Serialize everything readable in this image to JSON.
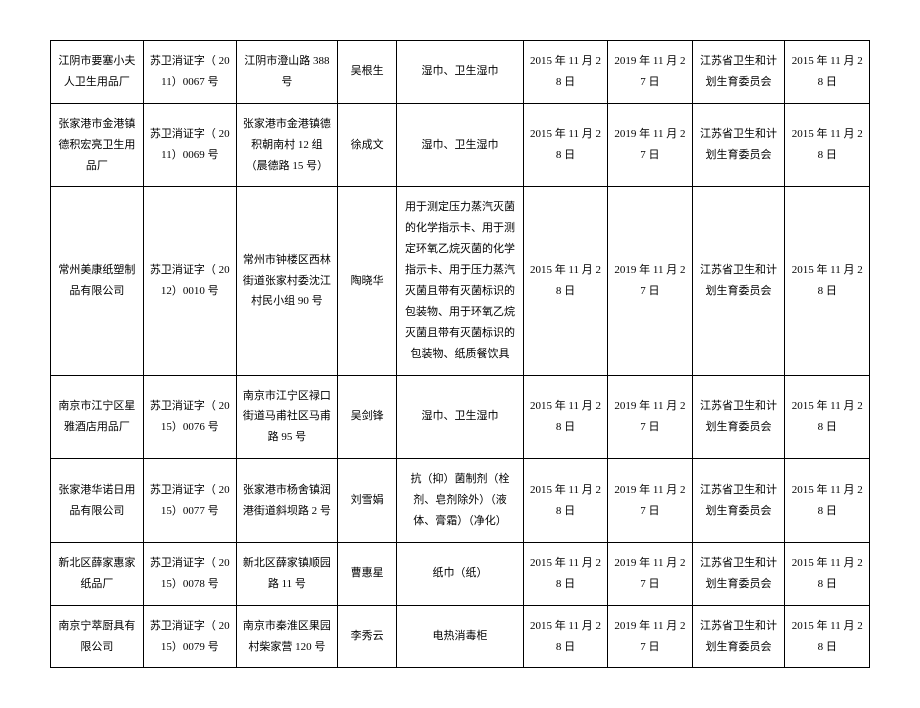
{
  "table": {
    "rows": [
      {
        "c1": "江阴市要塞小夫人卫生用品厂",
        "c2": "苏卫消证字（ 2011）0067 号",
        "c3": "江阴市澄山路 388 号",
        "c4": "吴根生",
        "c5": "湿巾、卫生湿巾",
        "c6": "2015 年 11 月 28 日",
        "c7": "2019 年 11 月 27 日",
        "c8": "江苏省卫生和计划生育委员会",
        "c9": "2015 年 11 月 28 日"
      },
      {
        "c1": "张家港市金港镇德积宏亮卫生用品厂",
        "c2": "苏卫消证字（ 2011）0069 号",
        "c3": "张家港市金港镇德积朝南村 12 组（晨德路 15 号）",
        "c4": "徐成文",
        "c5": "湿巾、卫生湿巾",
        "c6": "2015 年 11 月 28 日",
        "c7": "2019 年 11 月 27 日",
        "c8": "江苏省卫生和计划生育委员会",
        "c9": "2015 年 11 月 28 日"
      },
      {
        "c1": "常州美康纸塑制品有限公司",
        "c2": "苏卫消证字（ 2012）0010 号",
        "c3": "常州市钟楼区西林街道张家村委沈江村民小组 90 号",
        "c4": "陶晓华",
        "c5": "用于测定压力蒸汽灭菌的化学指示卡、用于测定环氧乙烷灭菌的化学指示卡、用于压力蒸汽灭菌且带有灭菌标识的包装物、用于环氧乙烷灭菌且带有灭菌标识的包装物、纸质餐饮具",
        "c6": "2015 年 11 月 28 日",
        "c7": "2019 年 11 月 27 日",
        "c8": "江苏省卫生和计划生育委员会",
        "c9": "2015 年 11 月 28 日"
      },
      {
        "c1": "南京市江宁区星雅酒店用品厂",
        "c2": "苏卫消证字（ 2015）0076 号",
        "c3": "南京市江宁区禄口街道马甫社区马甫路 95 号",
        "c4": "吴剑锋",
        "c5": "湿巾、卫生湿巾",
        "c6": "2015 年 11 月 28 日",
        "c7": "2019 年 11 月 27 日",
        "c8": "江苏省卫生和计划生育委员会",
        "c9": "2015 年 11 月 28 日"
      },
      {
        "c1": "张家港华诺日用品有限公司",
        "c2": "苏卫消证字（ 2015）0077 号",
        "c3": "张家港市杨舍镇润港街道斜坝路 2 号",
        "c4": "刘雪娟",
        "c5": "抗（抑）菌制剂（栓剂、皂剂除外）（液体、膏霜）（净化）",
        "c6": "2015 年 11 月 28 日",
        "c7": "2019 年 11 月 27 日",
        "c8": "江苏省卫生和计划生育委员会",
        "c9": "2015 年 11 月 28 日"
      },
      {
        "c1": "新北区薛家惠家纸品厂",
        "c2": "苏卫消证字（ 2015）0078 号",
        "c3": "新北区薛家镇顺园路 11 号",
        "c4": "曹惠星",
        "c5": "纸巾（纸）",
        "c6": "2015 年 11 月 28 日",
        "c7": "2019 年 11 月 27 日",
        "c8": "江苏省卫生和计划生育委员会",
        "c9": "2015 年 11 月 28 日"
      },
      {
        "c1": "南京宁萃厨具有限公司",
        "c2": "苏卫消证字（ 2015）0079 号",
        "c3": "南京市秦淮区果园村柴家营 120 号",
        "c4": "李秀云",
        "c5": "电热消毒柜",
        "c6": "2015 年 11 月 28 日",
        "c7": "2019 年 11 月 27 日",
        "c8": "江苏省卫生和计划生育委员会",
        "c9": "2015 年 11 月 28 日"
      }
    ]
  }
}
